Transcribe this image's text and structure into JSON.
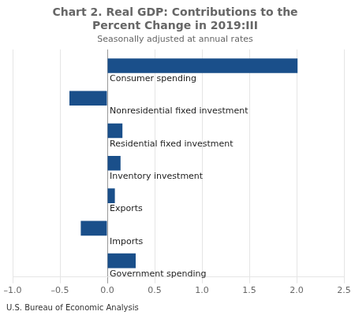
{
  "chart_data": {
    "type": "bar",
    "orientation": "horizontal",
    "title": "Chart 2. Real GDP: Contributions to the\nPercent Change in 2019:III",
    "subtitle": "Seasonally adjusted at annual rates",
    "annotations": [
      "U.S. Bureau of Economic Analysis"
    ],
    "categories": [
      "Consumer spending",
      "Nonresidential fixed investment",
      "Residential fixed investment",
      "Inventory investment",
      "Exports",
      "Imports",
      "Government spending"
    ],
    "values": [
      2.01,
      -0.4,
      0.16,
      0.14,
      0.08,
      -0.28,
      0.3
    ],
    "color": "#1a4f8a",
    "xlim": [
      -1.0,
      2.5
    ],
    "xticks": [
      {
        "value": -1.0,
        "label": "–1.0"
      },
      {
        "value": -0.5,
        "label": "–0.5"
      },
      {
        "value": 0.0,
        "label": "0.0"
      },
      {
        "value": 0.5,
        "label": "0.5"
      },
      {
        "value": 1.0,
        "label": "1.0"
      },
      {
        "value": 1.5,
        "label": "1.5"
      },
      {
        "value": 2.0,
        "label": "2.0"
      },
      {
        "value": 2.5,
        "label": "2.5"
      }
    ],
    "grid": true,
    "tick_labels": "x"
  }
}
